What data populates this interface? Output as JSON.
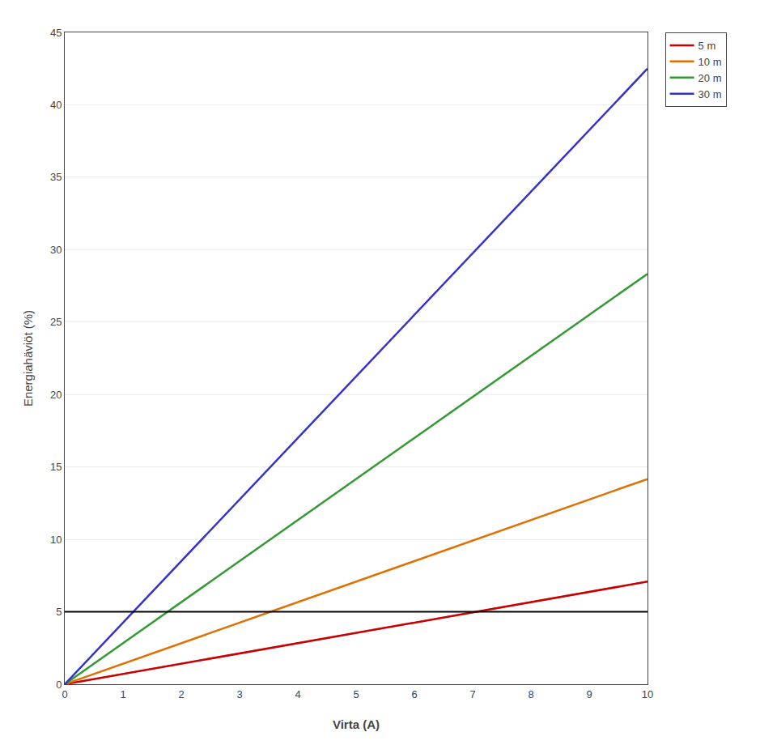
{
  "chart_data": {
    "type": "line",
    "xlabel": "Virta (A)",
    "ylabel": "Energiahäviöt (%)",
    "xlim": [
      0,
      10
    ],
    "ylim": [
      0,
      45
    ],
    "xticks": [
      0,
      1,
      2,
      3,
      4,
      5,
      6,
      7,
      8,
      9,
      10
    ],
    "yticks": [
      0,
      5,
      10,
      15,
      20,
      25,
      30,
      35,
      40,
      45
    ],
    "x": [
      0,
      10
    ],
    "series": [
      {
        "color": "#aaaaaa",
        "values": [
          0,
          7.0833
        ]
      },
      {
        "name": "5 m",
        "color": "#cc0000",
        "values": [
          0,
          7.0833
        ]
      },
      {
        "name": "10 m",
        "color": "#e07000",
        "values": [
          0,
          14.1667
        ]
      },
      {
        "name": "20 m",
        "color": "#339933",
        "values": [
          0,
          28.3333
        ]
      },
      {
        "name": "30 m",
        "color": "#3333cc",
        "values": [
          0,
          42.5
        ]
      },
      {
        "color": "#000000",
        "values": [
          5,
          5
        ]
      }
    ],
    "grid": "y",
    "legend": "right"
  }
}
